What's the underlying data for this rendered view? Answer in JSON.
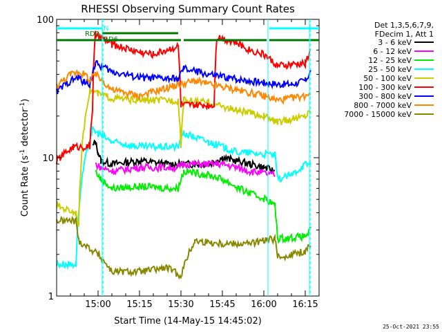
{
  "chart_data": {
    "type": "line",
    "title": "RHESSI Observing Summary Count Rates",
    "xlabel": "Start Time (14-May-15 14:45:02)",
    "ylabel": "Count Rate (s",
    "ylabel_sup": "-1",
    "ylabel_tail": " detector",
    "ylabel_sup2": "-1",
    "ylabel_end": ")",
    "yscale": "log",
    "ylim": [
      1,
      100
    ],
    "xlim_minutes": [
      0,
      95
    ],
    "x_ticks": [
      {
        "label": "15:00",
        "minutes": 15
      },
      {
        "label": "15:15",
        "minutes": 30
      },
      {
        "label": "15:30",
        "minutes": 45
      },
      {
        "label": "15:45",
        "minutes": 60
      },
      {
        "label": "16:00",
        "minutes": 75
      },
      {
        "label": "16:15",
        "minutes": 90
      }
    ],
    "y_ticks": [
      {
        "label": "1",
        "value": 1
      },
      {
        "label": "10",
        "value": 10
      },
      {
        "label": "100",
        "value": 100
      }
    ],
    "legend_header": [
      "Det 1,3,5,6,7,9,",
      "FDecim 1, Att 1"
    ],
    "legend_placement": "right",
    "series": [
      {
        "name": "3 - 6 keV",
        "color": "#000000",
        "points": [
          [
            13,
            12
          ],
          [
            14,
            13
          ],
          [
            15,
            11
          ],
          [
            16,
            9.5
          ],
          [
            20,
            9
          ],
          [
            30,
            9.5
          ],
          [
            40,
            9
          ],
          [
            45,
            9
          ],
          [
            50,
            9
          ],
          [
            55,
            9
          ],
          [
            60,
            10
          ],
          [
            65,
            9.5
          ],
          [
            70,
            9
          ],
          [
            75,
            8.5
          ],
          [
            79,
            8
          ]
        ]
      },
      {
        "name": "6 - 12 keV",
        "color": "#ff00ff",
        "points": [
          [
            14,
            9
          ],
          [
            16,
            8.5
          ],
          [
            20,
            8
          ],
          [
            30,
            8.5
          ],
          [
            44,
            8.5
          ],
          [
            46,
            9
          ],
          [
            55,
            9
          ],
          [
            60,
            9
          ],
          [
            70,
            8
          ],
          [
            79,
            7.5
          ]
        ]
      },
      {
        "name": "12 - 25 keV",
        "color": "#00ee00",
        "points": [
          [
            14,
            8
          ],
          [
            16,
            7
          ],
          [
            20,
            6
          ],
          [
            30,
            6.2
          ],
          [
            44,
            6
          ],
          [
            46,
            8
          ],
          [
            55,
            7.5
          ],
          [
            60,
            7
          ],
          [
            66,
            6
          ],
          [
            70,
            5.5
          ],
          [
            76,
            5
          ],
          [
            79,
            4.5
          ],
          [
            80,
            2.6
          ],
          [
            90,
            2.7
          ],
          [
            92,
            3
          ]
        ]
      },
      {
        "name": "25 - 50 keV",
        "color": "#00ffff",
        "points": [
          [
            0,
            1.7
          ],
          [
            6,
            1.7
          ],
          [
            7,
            1.7
          ],
          [
            13,
            16
          ],
          [
            15,
            15
          ],
          [
            20,
            13
          ],
          [
            30,
            12
          ],
          [
            44,
            12
          ],
          [
            46,
            15
          ],
          [
            55,
            13
          ],
          [
            65,
            11
          ],
          [
            79,
            10.5
          ],
          [
            80,
            7
          ],
          [
            85,
            7.5
          ],
          [
            90,
            9
          ],
          [
            92,
            9
          ]
        ]
      },
      {
        "name": "50 - 100 keV",
        "color": "#cccc00",
        "points": [
          [
            0,
            4.5
          ],
          [
            7,
            4
          ],
          [
            8,
            3.2
          ],
          [
            12,
            31
          ],
          [
            15,
            29
          ],
          [
            20,
            27
          ],
          [
            30,
            26
          ],
          [
            44,
            26
          ],
          [
            45,
            12
          ],
          [
            46,
            26
          ],
          [
            55,
            25
          ],
          [
            65,
            22
          ],
          [
            75,
            20
          ],
          [
            80,
            18
          ],
          [
            90,
            20
          ],
          [
            92,
            22
          ]
        ]
      },
      {
        "name": "100 - 300 keV",
        "color": "#ff0000",
        "points": [
          [
            0,
            9.5
          ],
          [
            6,
            12
          ],
          [
            12,
            12
          ],
          [
            13,
            23
          ],
          [
            14,
            78
          ],
          [
            20,
            66
          ],
          [
            30,
            58
          ],
          [
            35,
            56
          ],
          [
            44,
            64
          ],
          [
            45,
            24
          ],
          [
            50,
            24
          ],
          [
            57,
            24
          ],
          [
            58,
            75
          ],
          [
            65,
            68
          ],
          [
            70,
            60
          ],
          [
            75,
            56
          ],
          [
            80,
            46
          ],
          [
            85,
            47
          ],
          [
            90,
            48
          ],
          [
            92,
            60
          ]
        ]
      },
      {
        "name": "300 - 800 keV",
        "color": "#0000ff",
        "points": [
          [
            0,
            30
          ],
          [
            5,
            36
          ],
          [
            8,
            38
          ],
          [
            10,
            35
          ],
          [
            12,
            34
          ],
          [
            14,
            48
          ],
          [
            20,
            42
          ],
          [
            30,
            38
          ],
          [
            44,
            37
          ],
          [
            46,
            44
          ],
          [
            55,
            40
          ],
          [
            65,
            37
          ],
          [
            75,
            35
          ],
          [
            80,
            34
          ],
          [
            85,
            34
          ],
          [
            90,
            36
          ],
          [
            92,
            42
          ]
        ]
      },
      {
        "name": "800 - 7000 keV",
        "color": "#ff8800",
        "points": [
          [
            0,
            33
          ],
          [
            5,
            40
          ],
          [
            8,
            42
          ],
          [
            11,
            39
          ],
          [
            12,
            36
          ],
          [
            14,
            40
          ],
          [
            20,
            31
          ],
          [
            30,
            28
          ],
          [
            40,
            32
          ],
          [
            45,
            34
          ],
          [
            50,
            36
          ],
          [
            55,
            34
          ],
          [
            65,
            31
          ],
          [
            75,
            28
          ],
          [
            80,
            26
          ],
          [
            85,
            27
          ],
          [
            90,
            28
          ],
          [
            92,
            30
          ]
        ]
      },
      {
        "name": "7000 - 15000 keV",
        "color": "#888800",
        "points": [
          [
            0,
            3.5
          ],
          [
            7,
            3.5
          ],
          [
            8,
            2.5
          ],
          [
            15,
            2
          ],
          [
            20,
            1.5
          ],
          [
            30,
            1.5
          ],
          [
            40,
            1.6
          ],
          [
            45,
            1.4
          ],
          [
            50,
            2.5
          ],
          [
            60,
            2.4
          ],
          [
            70,
            2.4
          ],
          [
            79,
            2.6
          ],
          [
            80,
            1.9
          ],
          [
            85,
            2.0
          ],
          [
            90,
            2.1
          ],
          [
            92,
            2.4
          ]
        ]
      }
    ],
    "annotations": {
      "rd0_label": "RD0",
      "rd6_label": "RD6",
      "n_label": "N",
      "night_bars": [
        [
          0,
          16.5
        ],
        [
          77,
          95
        ]
      ],
      "rd0_bar": [
        16.5,
        44
      ],
      "rd6_bars": [
        [
          0,
          16.5
        ],
        [
          17,
          45
        ],
        [
          46,
          76
        ],
        [
          77,
          95
        ]
      ],
      "vlines": [
        16.5,
        76.5,
        91.5
      ],
      "vdash": [
        16.8,
        91.8
      ]
    }
  },
  "footer": {
    "timestamp": "25-Oct-2021 23:55"
  },
  "colors": {
    "rd_bar": "#007700",
    "night_bar": "#00ffff"
  }
}
